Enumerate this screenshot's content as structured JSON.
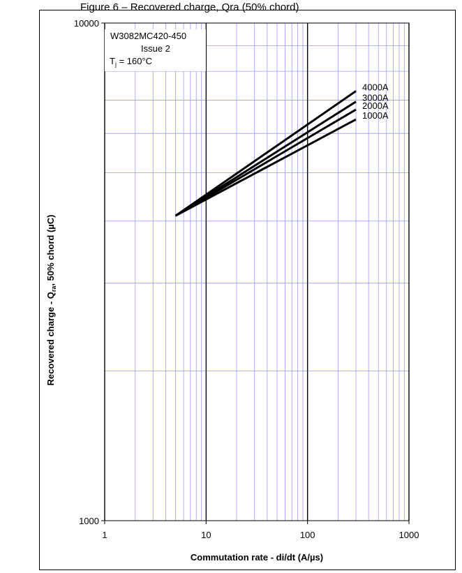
{
  "page": {
    "caption": "Figure 6 – Recovered charge, Qra (50% chord)"
  },
  "chart_data": {
    "type": "line",
    "title": "",
    "xlabel": "Commutation rate - di/dt (A/µs)",
    "ylabel_parts": [
      "Recovered charge - Q",
      "ra",
      ", 50% chord (µC)"
    ],
    "x_scale": "log",
    "y_scale": "log",
    "xlim": [
      1,
      1000
    ],
    "ylim": [
      1000,
      10000
    ],
    "x_ticks": [
      1,
      10,
      100,
      1000
    ],
    "x_tick_labels": [
      "1",
      "10",
      "100",
      "1000"
    ],
    "y_ticks": [
      1000,
      10000
    ],
    "y_tick_labels": [
      "1000",
      "10000"
    ],
    "grid": true,
    "annotation": {
      "line1": "W3082MC420-450",
      "line2": "Issue 2",
      "line3_prefix": "T",
      "line3_sub": "j",
      "line3_suffix": " = 160°C"
    },
    "series": [
      {
        "name": "4000A",
        "x": [
          5,
          300
        ],
        "y": [
          4100,
          7300
        ]
      },
      {
        "name": "3000A",
        "x": [
          5,
          300
        ],
        "y": [
          4100,
          6950
        ]
      },
      {
        "name": "2000A",
        "x": [
          5,
          300
        ],
        "y": [
          4100,
          6700
        ]
      },
      {
        "name": "1000A",
        "x": [
          5,
          300
        ],
        "y": [
          4100,
          6400
        ]
      }
    ],
    "colors": {
      "minor_grid": "#9999ff",
      "major_grid": "#000000",
      "series": "#000000"
    }
  }
}
